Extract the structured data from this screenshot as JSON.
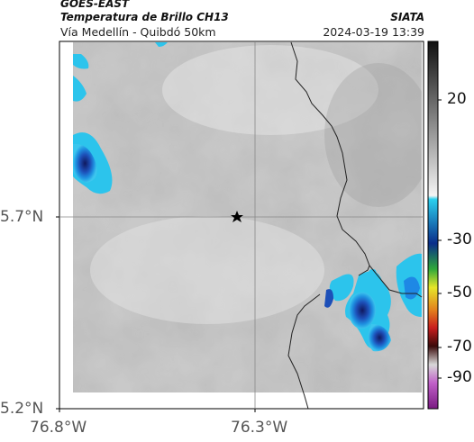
{
  "header": {
    "satellite": "GOES-EAST",
    "product": "Temperatura de Brillo CH13",
    "route": "Vía Medellín - Quibdó 50km",
    "org": "SIATA",
    "timestamp": "2024-03-19 13:39"
  },
  "axes": {
    "lat_ticks": [
      "5.7°N",
      "5.2°N"
    ],
    "lon_ticks": [
      "76.8°W",
      "76.3°W"
    ]
  },
  "colorbar": {
    "ticks": [
      "20",
      "-30",
      "-50",
      "-70",
      "-90"
    ]
  },
  "map": {
    "marker": "star-icon",
    "colors": {
      "cold_deep": "#1a237e",
      "cold_mid": "#1e88e5",
      "cold_edge": "#29c3ec",
      "cloud_light": "#f2f2f2",
      "cloud_dark": "#9a9a9a",
      "border": "#222222"
    }
  }
}
